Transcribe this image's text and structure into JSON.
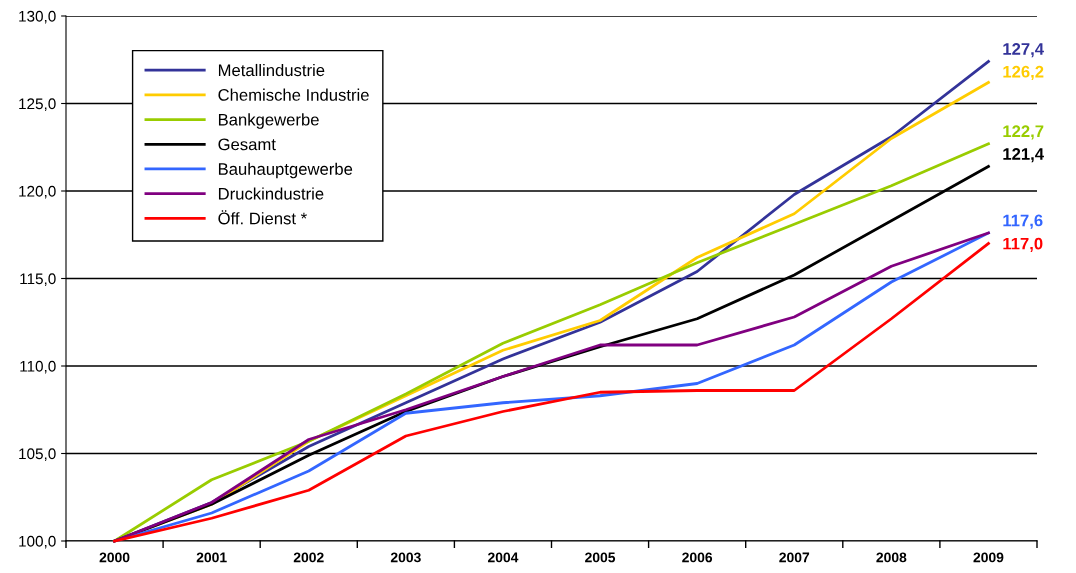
{
  "chart_data": {
    "type": "line",
    "categories": [
      "2000",
      "2001",
      "2002",
      "2003",
      "2004",
      "2005",
      "2006",
      "2007",
      "2008",
      "2009"
    ],
    "ylim": [
      100,
      130
    ],
    "yticks": [
      {
        "value": 100,
        "label": "100,0"
      },
      {
        "value": 105,
        "label": "105,0"
      },
      {
        "value": 110,
        "label": "110,0"
      },
      {
        "value": 115,
        "label": "115,0"
      },
      {
        "value": 120,
        "label": "120,0"
      },
      {
        "value": 125,
        "label": "125,0"
      },
      {
        "value": 130,
        "label": "130,0"
      }
    ],
    "grid": "y",
    "legend": "top left",
    "marker": "none",
    "line_style": "solid",
    "series": [
      {
        "name": "Metallindustrie",
        "color": "#333399",
        "values": [
          100,
          102.2,
          105.4,
          107.9,
          110.4,
          112.5,
          115.4,
          119.8,
          123.1,
          127.4
        ],
        "value_labels": [
          null,
          null,
          null,
          null,
          null,
          null,
          null,
          null,
          null,
          "127,4"
        ]
      },
      {
        "name": "Chemische Industrie",
        "color": "#ffcc00",
        "values": [
          100,
          102.1,
          105.7,
          108.3,
          110.9,
          112.6,
          116.2,
          118.7,
          123.0,
          126.2
        ],
        "value_labels": [
          null,
          null,
          null,
          null,
          null,
          null,
          null,
          null,
          null,
          "126,2"
        ]
      },
      {
        "name": "Bankgewerbe",
        "color": "#99cc00",
        "values": [
          100,
          103.5,
          105.7,
          108.4,
          111.3,
          113.5,
          115.9,
          118.1,
          120.3,
          122.7
        ],
        "value_labels": [
          null,
          null,
          null,
          null,
          null,
          null,
          null,
          null,
          null,
          "122,7"
        ]
      },
      {
        "name": "Gesamt",
        "color": "#000000",
        "values": [
          100,
          102.1,
          104.9,
          107.4,
          109.4,
          111.1,
          112.7,
          115.2,
          118.3,
          121.4
        ],
        "value_labels": [
          null,
          null,
          null,
          null,
          null,
          null,
          null,
          null,
          null,
          "121,4"
        ]
      },
      {
        "name": "Bauhauptgewerbe",
        "color": "#3366ff",
        "values": [
          100,
          101.6,
          104.0,
          107.3,
          107.9,
          108.3,
          109.0,
          111.2,
          114.8,
          117.6
        ],
        "value_labels": [
          null,
          null,
          null,
          null,
          null,
          null,
          null,
          null,
          null,
          "117,6"
        ]
      },
      {
        "name": "Druckindustrie",
        "color": "#800080",
        "values": [
          100,
          102.2,
          105.8,
          107.5,
          109.4,
          111.2,
          111.2,
          112.8,
          115.7,
          117.6
        ],
        "value_labels": [
          null,
          null,
          null,
          null,
          null,
          null,
          null,
          null,
          null,
          null
        ]
      },
      {
        "name": "Öff. Dienst *",
        "color": "#ff0000",
        "values": [
          100,
          101.3,
          102.9,
          106.0,
          107.4,
          108.5,
          108.6,
          108.6,
          112.7,
          117.0
        ],
        "value_labels": [
          null,
          null,
          null,
          null,
          null,
          null,
          null,
          null,
          null,
          "117,0"
        ]
      }
    ]
  }
}
